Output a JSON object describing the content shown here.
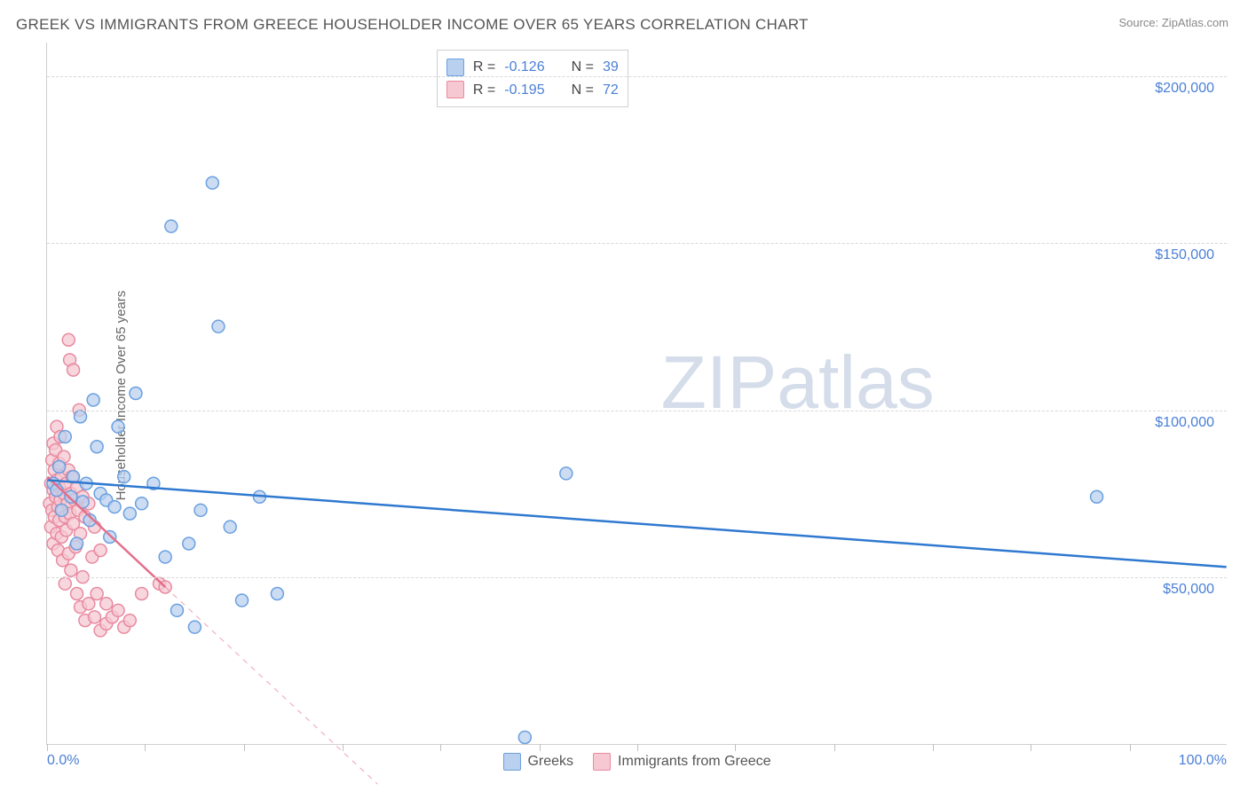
{
  "title": "GREEK VS IMMIGRANTS FROM GREECE HOUSEHOLDER INCOME OVER 65 YEARS CORRELATION CHART",
  "source_label": "Source: ZipAtlas.com",
  "y_axis_label": "Householder Income Over 65 years",
  "watermark": {
    "text_a": "ZIP",
    "text_b": "atlas",
    "color": "#d4dde9",
    "fontsize": 84
  },
  "chart": {
    "type": "scatter",
    "background_color": "#ffffff",
    "grid_color": "#d8d8d8",
    "axis_color": "#d0d0d0",
    "tick_label_color": "#4a7fd6",
    "xlim": [
      0,
      100
    ],
    "ylim": [
      0,
      210000
    ],
    "x_start_label": "0.0%",
    "x_end_label": "100.0%",
    "x_ticks_percent": [
      0,
      8.3,
      16.7,
      25,
      33.3,
      41.7,
      50,
      58.3,
      66.7,
      75,
      83.3,
      91.7
    ],
    "y_ticks": [
      {
        "value": 50000,
        "label": "$50,000"
      },
      {
        "value": 100000,
        "label": "$100,000"
      },
      {
        "value": 150000,
        "label": "$150,000"
      },
      {
        "value": 200000,
        "label": "$200,000"
      }
    ],
    "marker_radius": 7,
    "marker_stroke_width": 1.5,
    "trend_line_width": 2.5,
    "series": [
      {
        "key": "greeks",
        "label": "Greeks",
        "fill": "#b9d0ef",
        "stroke": "#6aa0e0",
        "line_color": "#2f79d0",
        "R": "-0.126",
        "N": "39",
        "trend": {
          "x1": 0,
          "y1": 79000,
          "x2": 100,
          "y2": 53000,
          "dashed": false
        },
        "points": [
          [
            0.5,
            78000
          ],
          [
            0.8,
            76000
          ],
          [
            1.0,
            83000
          ],
          [
            1.2,
            70000
          ],
          [
            1.5,
            92000
          ],
          [
            2.0,
            74000
          ],
          [
            2.2,
            80000
          ],
          [
            2.5,
            60000
          ],
          [
            2.8,
            98000
          ],
          [
            3.0,
            72500
          ],
          [
            3.3,
            78000
          ],
          [
            3.6,
            67000
          ],
          [
            3.9,
            103000
          ],
          [
            4.2,
            89000
          ],
          [
            4.5,
            75000
          ],
          [
            5.0,
            73000
          ],
          [
            5.3,
            62000
          ],
          [
            5.7,
            71000
          ],
          [
            6.0,
            95000
          ],
          [
            6.5,
            80000
          ],
          [
            7.0,
            69000
          ],
          [
            7.5,
            105000
          ],
          [
            8.0,
            72000
          ],
          [
            9.0,
            78000
          ],
          [
            10.0,
            56000
          ],
          [
            10.5,
            155000
          ],
          [
            11.0,
            40000
          ],
          [
            12.0,
            60000
          ],
          [
            12.5,
            35000
          ],
          [
            13.0,
            70000
          ],
          [
            14.0,
            168000
          ],
          [
            14.5,
            125000
          ],
          [
            15.5,
            65000
          ],
          [
            16.5,
            43000
          ],
          [
            18.0,
            74000
          ],
          [
            19.5,
            45000
          ],
          [
            40.5,
            2000
          ],
          [
            44.0,
            81000
          ],
          [
            89.0,
            74000
          ]
        ]
      },
      {
        "key": "immigrants",
        "label": "Immigrants from Greece",
        "fill": "#f6c8d2",
        "stroke": "#e88aa0",
        "line_color": "#e36f8c",
        "R": "-0.195",
        "N": "72",
        "trend": {
          "x1": 0,
          "y1": 80000,
          "x2": 10,
          "y2": 47000,
          "dashed": false
        },
        "trend_ext": {
          "x1": 10,
          "y1": 47000,
          "x2": 28,
          "y2": -12000,
          "dashed": true
        },
        "points": [
          [
            0.2,
            72000
          ],
          [
            0.3,
            78000
          ],
          [
            0.3,
            65000
          ],
          [
            0.4,
            85000
          ],
          [
            0.4,
            70000
          ],
          [
            0.5,
            90000
          ],
          [
            0.5,
            60000
          ],
          [
            0.5,
            76000
          ],
          [
            0.6,
            82000
          ],
          [
            0.6,
            68000
          ],
          [
            0.7,
            74000
          ],
          [
            0.7,
            88000
          ],
          [
            0.8,
            63000
          ],
          [
            0.8,
            79000
          ],
          [
            0.8,
            95000
          ],
          [
            0.9,
            71000
          ],
          [
            0.9,
            58000
          ],
          [
            1.0,
            84000
          ],
          [
            1.0,
            67000
          ],
          [
            1.0,
            77000
          ],
          [
            1.1,
            73000
          ],
          [
            1.1,
            92000
          ],
          [
            1.2,
            62000
          ],
          [
            1.2,
            80000
          ],
          [
            1.3,
            70000
          ],
          [
            1.3,
            55000
          ],
          [
            1.4,
            75000
          ],
          [
            1.4,
            86000
          ],
          [
            1.5,
            68000
          ],
          [
            1.5,
            48000
          ],
          [
            1.6,
            78000
          ],
          [
            1.6,
            64000
          ],
          [
            1.7,
            72000
          ],
          [
            1.8,
            82000
          ],
          [
            1.8,
            57000
          ],
          [
            1.8,
            121000
          ],
          [
            1.9,
            69000
          ],
          [
            1.9,
            115000
          ],
          [
            2.0,
            75000
          ],
          [
            2.0,
            52000
          ],
          [
            2.1,
            80000
          ],
          [
            2.2,
            66000
          ],
          [
            2.2,
            112000
          ],
          [
            2.3,
            73000
          ],
          [
            2.4,
            59000
          ],
          [
            2.5,
            77000
          ],
          [
            2.5,
            45000
          ],
          [
            2.6,
            70000
          ],
          [
            2.8,
            63000
          ],
          [
            2.8,
            41000
          ],
          [
            3.0,
            74000
          ],
          [
            3.0,
            50000
          ],
          [
            3.2,
            68000
          ],
          [
            3.2,
            37000
          ],
          [
            3.5,
            72000
          ],
          [
            3.5,
            42000
          ],
          [
            3.8,
            56000
          ],
          [
            4.0,
            65000
          ],
          [
            4.0,
            38000
          ],
          [
            4.2,
            45000
          ],
          [
            4.5,
            58000
          ],
          [
            4.5,
            34000
          ],
          [
            5.0,
            42000
          ],
          [
            5.0,
            36000
          ],
          [
            5.5,
            38000
          ],
          [
            6.0,
            40000
          ],
          [
            6.5,
            35000
          ],
          [
            7.0,
            37000
          ],
          [
            8.0,
            45000
          ],
          [
            9.5,
            48000
          ],
          [
            10.0,
            47000
          ],
          [
            2.7,
            100000
          ]
        ]
      }
    ]
  },
  "legend_corr": {
    "R_label": "R =",
    "N_label": "N ="
  }
}
